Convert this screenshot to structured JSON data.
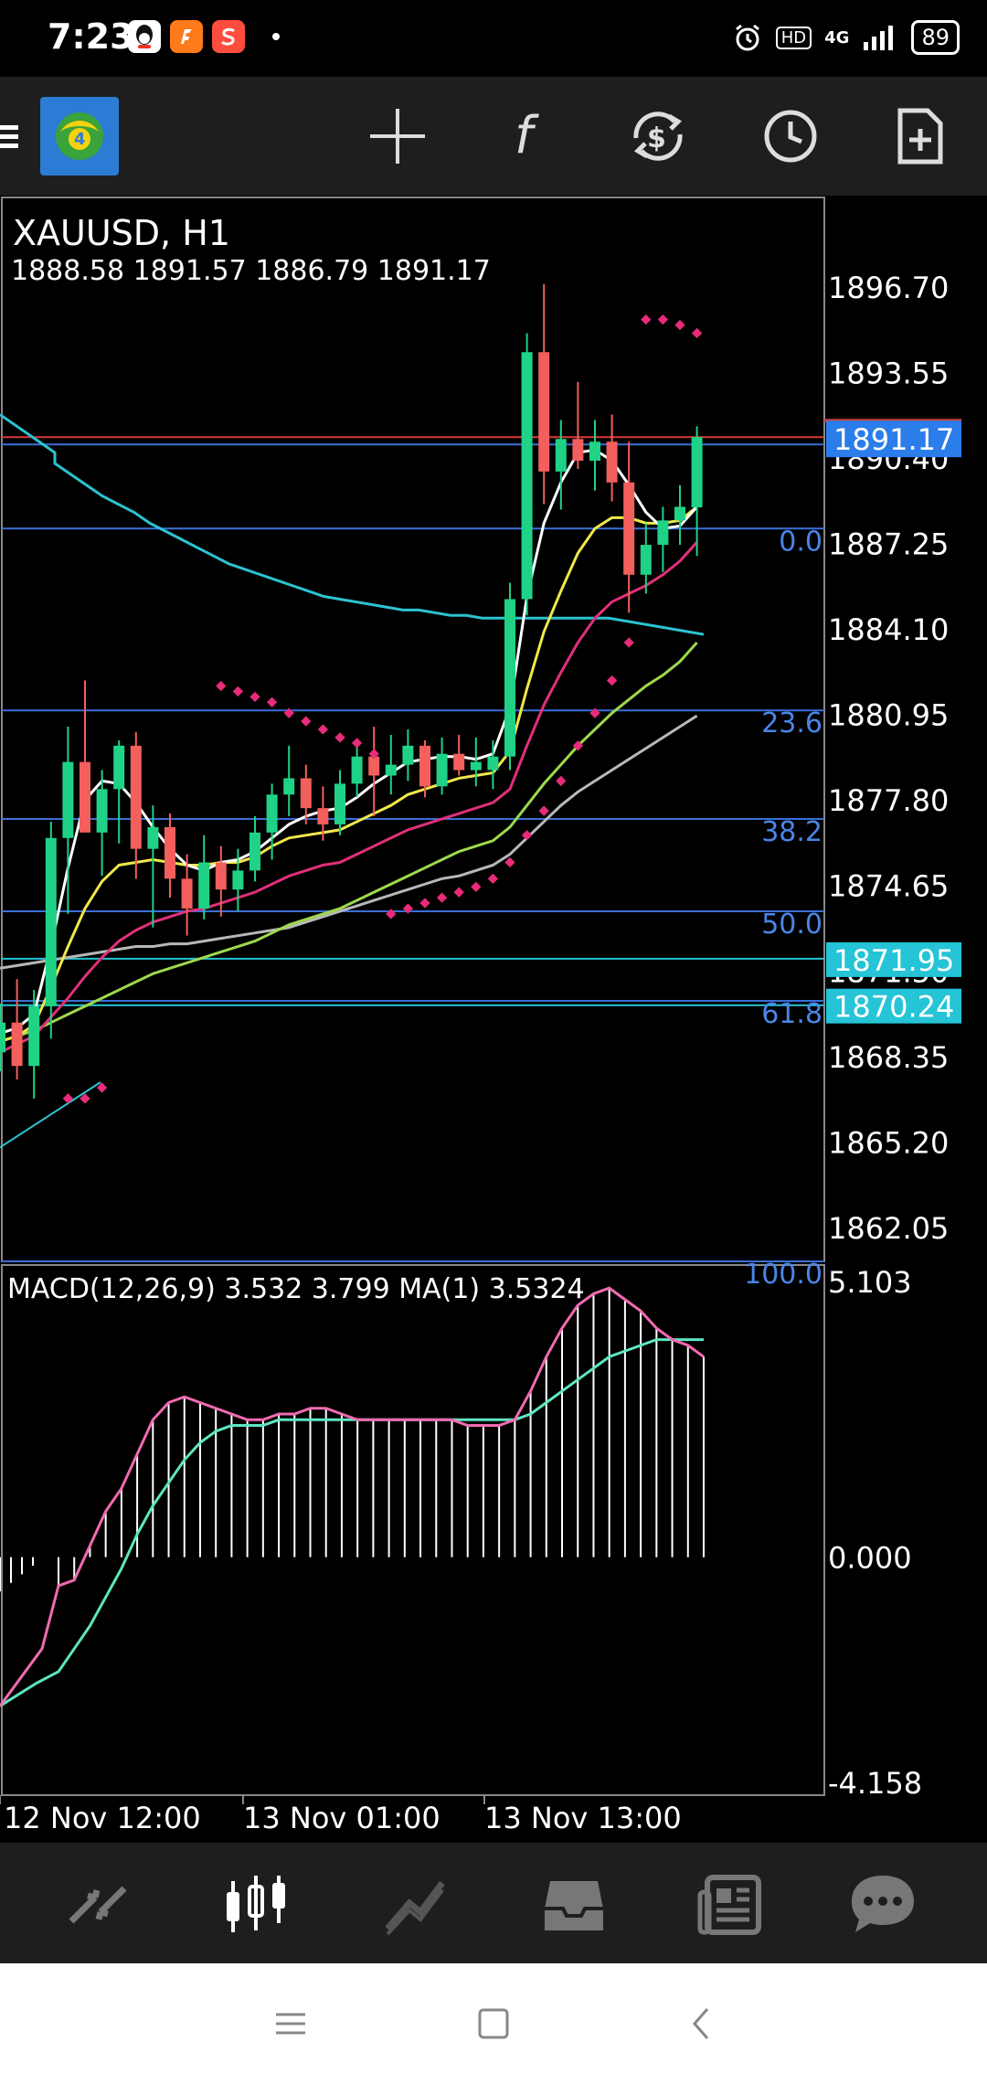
{
  "status_bar": {
    "time": "7:23",
    "network": "4G",
    "hd": "HD",
    "battery": "89",
    "app_icons": [
      "qq-icon",
      "app-icon-orange",
      "app-icon-red"
    ]
  },
  "toolbar": {
    "icons": [
      "menu-icon",
      "mt4-logo-icon",
      "crosshair-icon",
      "indicators-icon",
      "trade-icon",
      "timeframe-icon",
      "templates-icon"
    ]
  },
  "chart": {
    "symbol": "XAUUSD, H1",
    "ohlc": "1888.58 1891.57 1886.79 1891.17",
    "price_axis": [
      "1896.70",
      "1893.55",
      "1890.40",
      "1887.25",
      "1884.10",
      "1880.95",
      "1877.80",
      "1874.65",
      "1871.50",
      "1868.35",
      "1865.20",
      "1862.05"
    ],
    "current_price_tag": "1891.17",
    "price_tags": [
      "1871.95",
      "1870.24"
    ],
    "fib_levels": [
      "0.0",
      "23.6",
      "38.2",
      "50.0",
      "61.8",
      "100.0"
    ],
    "macd_label": "MACD(12,26,9) 3.532 3.799 MA(1) 3.5324",
    "macd_axis": [
      "5.103",
      "0.000",
      "-4.158"
    ],
    "time_axis": [
      "12 Nov 12:00",
      "13 Nov 01:00",
      "13 Nov 13:00"
    ],
    "colors": {
      "bull": "#1fd286",
      "bear": "#f25f5c",
      "fib_line": "#3a6fd8",
      "ma_cyan": "#2cc3d1",
      "ma_white": "#ffffff",
      "ma_yellow": "#f0e84a",
      "ma_pink": "#e0307a",
      "ma_green": "#9ed94c",
      "ma_gray": "#b8b8b8",
      "sar": "#e82b7a",
      "macd_signal": "#f06ab0",
      "macd_ma": "#5de6c2",
      "current_price_bg": "#2b7de9",
      "level_tag_bg": "#25c4d6"
    }
  },
  "chart_data": {
    "type": "candlestick",
    "title": "XAUUSD, H1",
    "y_range": [
      1860.8,
      1900.0
    ],
    "macd_range": [
      -4.158,
      5.103
    ],
    "candles": [
      [
        1868.5,
        1870.3,
        1867.8,
        1869.6
      ],
      [
        1869.6,
        1871.2,
        1867.5,
        1868.0
      ],
      [
        1868.0,
        1870.8,
        1866.8,
        1870.2
      ],
      [
        1870.2,
        1877.0,
        1869.0,
        1876.4
      ],
      [
        1876.4,
        1880.5,
        1873.6,
        1879.2
      ],
      [
        1879.2,
        1882.2,
        1876.8,
        1876.6
      ],
      [
        1876.6,
        1878.9,
        1875.0,
        1878.2
      ],
      [
        1878.2,
        1880.0,
        1876.2,
        1879.8
      ],
      [
        1879.8,
        1880.3,
        1874.9,
        1876.0
      ],
      [
        1876.0,
        1877.6,
        1873.1,
        1876.8
      ],
      [
        1876.8,
        1877.3,
        1874.2,
        1874.9
      ],
      [
        1874.9,
        1875.8,
        1872.8,
        1873.8
      ],
      [
        1873.8,
        1876.5,
        1873.4,
        1875.5
      ],
      [
        1875.5,
        1876.1,
        1873.5,
        1874.5
      ],
      [
        1874.5,
        1876.0,
        1873.7,
        1875.2
      ],
      [
        1875.2,
        1877.2,
        1874.8,
        1876.6
      ],
      [
        1876.6,
        1878.4,
        1875.6,
        1878.0
      ],
      [
        1878.0,
        1879.8,
        1877.2,
        1878.6
      ],
      [
        1878.6,
        1879.1,
        1876.9,
        1877.5
      ],
      [
        1877.5,
        1878.3,
        1876.3,
        1876.9
      ],
      [
        1876.9,
        1878.9,
        1876.5,
        1878.4
      ],
      [
        1878.4,
        1880.0,
        1877.9,
        1879.4
      ],
      [
        1879.4,
        1880.5,
        1877.2,
        1878.7
      ],
      [
        1878.7,
        1880.2,
        1878.0,
        1879.1
      ],
      [
        1879.1,
        1880.4,
        1878.5,
        1879.8
      ],
      [
        1879.8,
        1880.0,
        1877.9,
        1878.3
      ],
      [
        1878.3,
        1880.1,
        1878.0,
        1879.5
      ],
      [
        1879.5,
        1880.2,
        1878.7,
        1878.9
      ],
      [
        1878.9,
        1880.1,
        1878.3,
        1879.2
      ],
      [
        1878.9,
        1880.0,
        1878.2,
        1879.4
      ],
      [
        1879.4,
        1885.8,
        1878.9,
        1885.2
      ],
      [
        1885.2,
        1895.0,
        1884.6,
        1894.3
      ],
      [
        1894.3,
        1896.8,
        1888.7,
        1889.9
      ],
      [
        1889.9,
        1891.8,
        1888.5,
        1891.1
      ],
      [
        1891.1,
        1893.2,
        1890.0,
        1890.3
      ],
      [
        1890.3,
        1891.8,
        1889.2,
        1891.0
      ],
      [
        1891.0,
        1892.0,
        1888.8,
        1889.5
      ],
      [
        1889.5,
        1891.0,
        1884.7,
        1886.1
      ],
      [
        1886.1,
        1888.0,
        1885.4,
        1887.2
      ],
      [
        1887.2,
        1888.6,
        1886.2,
        1888.1
      ],
      [
        1888.1,
        1889.4,
        1887.2,
        1888.6
      ],
      [
        1888.58,
        1891.57,
        1886.79,
        1891.17
      ]
    ],
    "ma_cyan": [
      1890.2,
      1889.8,
      1889.4,
      1889.0,
      1888.7,
      1888.4,
      1888.0,
      1887.7,
      1887.4,
      1887.1,
      1886.8,
      1886.5,
      1886.3,
      1886.1,
      1885.9,
      1885.7,
      1885.5,
      1885.3,
      1885.2,
      1885.1,
      1885.0,
      1884.9,
      1884.8,
      1884.8,
      1884.7,
      1884.6,
      1884.6,
      1884.5,
      1884.5,
      1884.5,
      1884.5,
      1884.5,
      1884.5,
      1884.5,
      1884.5,
      1884.5,
      1884.4,
      1884.3,
      1884.2,
      1884.1,
      1884.0,
      1883.9
    ],
    "ma_white": [
      1869.2,
      1869.4,
      1869.9,
      1872.4,
      1875.3,
      1877.8,
      1878.5,
      1878.4,
      1877.7,
      1876.8,
      1876.0,
      1875.4,
      1875.2,
      1875.5,
      1875.6,
      1875.9,
      1876.4,
      1876.9,
      1877.2,
      1877.4,
      1877.5,
      1877.9,
      1878.4,
      1878.8,
      1879.2,
      1879.3,
      1879.4,
      1879.4,
      1879.3,
      1879.5,
      1881.2,
      1885.3,
      1888.0,
      1889.5,
      1890.6,
      1890.7,
      1890.3,
      1889.4,
      1888.4,
      1887.8,
      1887.9,
      1888.6
    ],
    "ma_yellow": [
      1868.9,
      1869.1,
      1869.5,
      1870.9,
      1872.4,
      1873.8,
      1874.8,
      1875.4,
      1875.5,
      1875.6,
      1875.5,
      1875.4,
      1875.4,
      1875.5,
      1875.5,
      1875.7,
      1876.1,
      1876.4,
      1876.5,
      1876.6,
      1876.7,
      1877.0,
      1877.3,
      1877.6,
      1878.0,
      1878.2,
      1878.4,
      1878.6,
      1878.7,
      1878.8,
      1879.6,
      1881.9,
      1884.0,
      1885.5,
      1886.9,
      1887.8,
      1888.2,
      1888.2,
      1888.0,
      1888.0,
      1888.1,
      1888.6
    ],
    "ma_pink": [
      1868.5,
      1868.8,
      1869.1,
      1869.8,
      1870.5,
      1871.3,
      1872.0,
      1872.6,
      1873.0,
      1873.3,
      1873.5,
      1873.7,
      1873.8,
      1874.0,
      1874.2,
      1874.4,
      1874.7,
      1875.0,
      1875.2,
      1875.4,
      1875.5,
      1875.8,
      1876.1,
      1876.4,
      1876.7,
      1876.9,
      1877.1,
      1877.3,
      1877.5,
      1877.7,
      1878.2,
      1879.8,
      1881.3,
      1882.5,
      1883.6,
      1884.5,
      1885.1,
      1885.4,
      1885.7,
      1886.1,
      1886.6,
      1887.3
    ],
    "ma_green": [
      1868.9,
      1869.1,
      1869.3,
      1869.6,
      1869.9,
      1870.2,
      1870.5,
      1870.8,
      1871.1,
      1871.4,
      1871.6,
      1871.8,
      1872.0,
      1872.2,
      1872.4,
      1872.6,
      1872.9,
      1873.2,
      1873.4,
      1873.6,
      1873.8,
      1874.1,
      1874.4,
      1874.7,
      1875.0,
      1875.3,
      1875.6,
      1875.9,
      1876.1,
      1876.3,
      1876.8,
      1877.6,
      1878.4,
      1879.1,
      1879.8,
      1880.4,
      1881.0,
      1881.5,
      1882.0,
      1882.4,
      1882.9,
      1883.6
    ],
    "ma_gray": [
      1871.6,
      1871.7,
      1871.8,
      1871.9,
      1872.0,
      1872.1,
      1872.2,
      1872.3,
      1872.4,
      1872.4,
      1872.5,
      1872.5,
      1872.6,
      1872.7,
      1872.8,
      1872.9,
      1873.0,
      1873.1,
      1873.3,
      1873.5,
      1873.7,
      1873.9,
      1874.1,
      1874.3,
      1874.5,
      1874.7,
      1874.9,
      1875.0,
      1875.2,
      1875.4,
      1875.8,
      1876.4,
      1877.0,
      1877.6,
      1878.1,
      1878.5,
      1878.9,
      1879.3,
      1879.7,
      1880.1,
      1880.5,
      1880.9
    ],
    "sar": [
      null,
      null,
      null,
      null,
      1866.8,
      1866.8,
      1867.2,
      null,
      null,
      null,
      null,
      null,
      null,
      1882.0,
      1881.8,
      1881.6,
      1881.4,
      1881.0,
      1880.7,
      1880.4,
      1880.1,
      1879.9,
      1879.5,
      1873.6,
      1873.8,
      1874.0,
      1874.2,
      1874.4,
      1874.6,
      1874.9,
      1875.5,
      1876.5,
      1877.4,
      1878.5,
      1879.8,
      1881.0,
      1882.2,
      1883.6,
      1895.5,
      1895.5,
      1895.3,
      1895.0
    ],
    "fib": [
      {
        "label": "0.0",
        "price": 1887.8
      },
      {
        "label": "23.6",
        "price": 1881.1
      },
      {
        "label": "38.2",
        "price": 1877.1
      },
      {
        "label": "50.0",
        "price": 1873.7
      },
      {
        "label": "61.8",
        "price": 1870.4
      },
      {
        "label": "100.0",
        "price": 1860.8
      }
    ],
    "horizontal_lines": [
      {
        "price": 1891.17,
        "color": "#d73a3a"
      },
      {
        "price": 1890.9,
        "color": "#3a6fd8"
      },
      {
        "price": 1871.95,
        "color": "#25c4d6"
      },
      {
        "price": 1870.24,
        "color": "#25c4d6"
      }
    ],
    "macd_hist": [
      -0.5,
      -0.4,
      0.2,
      0.8,
      1.2,
      1.8,
      2.4,
      2.7,
      2.8,
      2.7,
      2.6,
      2.5,
      2.4,
      2.4,
      2.5,
      2.5,
      2.6,
      2.6,
      2.5,
      2.4,
      2.4,
      2.4,
      2.4,
      2.4,
      2.4,
      2.4,
      2.3,
      2.3,
      2.3,
      2.4,
      2.9,
      3.5,
      4.0,
      4.4,
      4.6,
      4.7,
      4.5,
      4.3,
      4.0,
      3.8,
      3.7,
      3.5
    ],
    "macd_signal": [
      -2.0,
      -1.6,
      -1.2,
      -0.7,
      -0.2,
      0.4,
      0.9,
      1.3,
      1.7,
      2.0,
      2.2,
      2.3,
      2.3,
      2.3,
      2.4,
      2.4,
      2.4,
      2.4,
      2.4,
      2.4,
      2.4,
      2.4,
      2.4,
      2.4,
      2.4,
      2.4,
      2.4,
      2.4,
      2.4,
      2.4,
      2.5,
      2.7,
      2.9,
      3.1,
      3.3,
      3.5,
      3.6,
      3.7,
      3.8,
      3.8,
      3.8,
      3.8
    ]
  },
  "bottom_nav": {
    "icons": [
      "quotes-icon",
      "chart-icon",
      "trade-icon",
      "history-icon",
      "news-icon",
      "chat-icon"
    ]
  },
  "system_nav": {
    "icons": [
      "recents-icon",
      "home-icon",
      "back-icon"
    ]
  }
}
